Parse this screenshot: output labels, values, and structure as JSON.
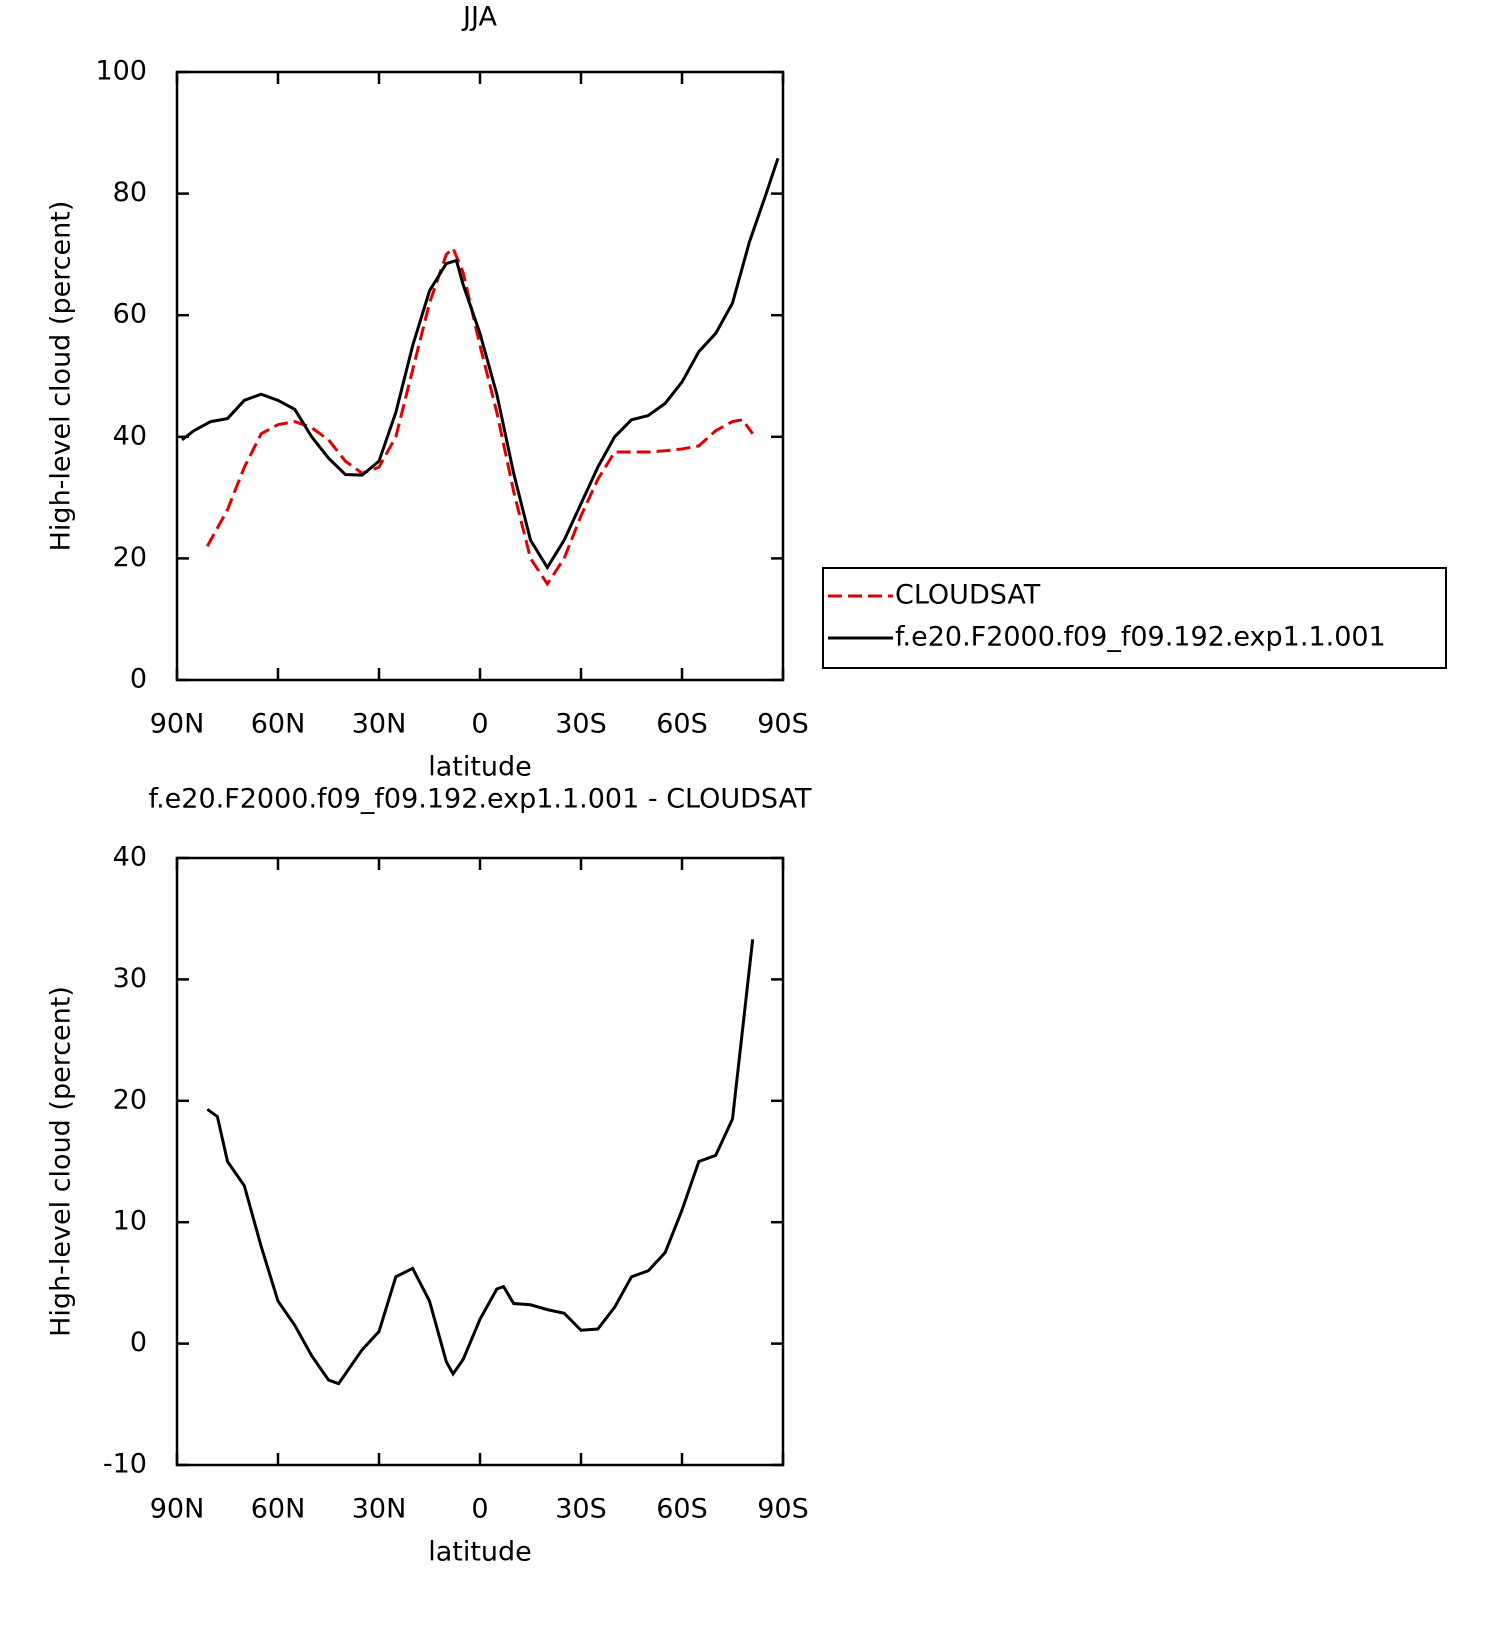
{
  "chart_data": [
    {
      "type": "line",
      "title": "JJA",
      "xlabel": "latitude",
      "ylabel": "High-level cloud (percent)",
      "xlim": [
        90,
        -90
      ],
      "xticks": [
        {
          "value": 90,
          "label": "90N"
        },
        {
          "value": 60,
          "label": "60N"
        },
        {
          "value": 30,
          "label": "30N"
        },
        0,
        {
          "value": -30,
          "label": "30S"
        },
        {
          "value": -60,
          "label": "60S"
        },
        {
          "value": -90,
          "label": "90S"
        }
      ],
      "ylim": [
        0,
        100
      ],
      "yticks": [
        0,
        20,
        40,
        60,
        80,
        100
      ],
      "legend": "right",
      "series": [
        {
          "name": "CLOUDSAT",
          "color": "#e00000",
          "dash": true,
          "x": [
            81,
            75,
            70,
            65,
            60,
            55,
            50,
            45,
            40,
            35,
            30,
            25,
            20,
            15,
            10,
            8,
            5,
            0,
            -5,
            -10,
            -15,
            -20,
            -25,
            -30,
            -35,
            -40,
            -45,
            -50,
            -55,
            -60,
            -65,
            -70,
            -75,
            -78,
            -81
          ],
          "values": [
            22,
            28,
            35,
            40.5,
            42,
            42.5,
            41.5,
            39.5,
            36,
            34,
            35,
            40,
            51,
            62,
            70,
            71,
            67,
            55,
            44,
            31,
            20,
            15.8,
            20,
            27,
            33,
            37.5,
            37.5,
            37.5,
            37.7,
            38,
            38.5,
            41,
            42.5,
            42.8,
            40.5
          ]
        },
        {
          "name": "f.e20.F2000.f09_f09.192.exp1.1.001",
          "color": "#000000",
          "dash": false,
          "x": [
            88.5,
            85,
            80,
            75,
            70,
            65,
            60,
            55,
            50,
            45,
            40,
            35,
            30,
            25,
            20,
            15,
            10,
            7,
            5,
            0,
            -5,
            -10,
            -15,
            -20,
            -25,
            -30,
            -35,
            -40,
            -45,
            -50,
            -55,
            -60,
            -65,
            -70,
            -75,
            -80,
            -85,
            -88.5
          ],
          "values": [
            39.5,
            41,
            42.5,
            43,
            46,
            47,
            46,
            44.5,
            40,
            36.5,
            33.8,
            33.7,
            36,
            44,
            55,
            64,
            68.5,
            69,
            65,
            57,
            47,
            34,
            23,
            18.5,
            23,
            29,
            35,
            40,
            42.8,
            43.5,
            45.5,
            49,
            54,
            57,
            62,
            72,
            80,
            85.8
          ]
        }
      ]
    },
    {
      "type": "line",
      "title": "f.e20.F2000.f09_f09.192.exp1.1.001 - CLOUDSAT",
      "xlabel": "latitude",
      "ylabel": "High-level cloud (percent)",
      "xlim": [
        90,
        -90
      ],
      "xticks": [
        {
          "value": 90,
          "label": "90N"
        },
        {
          "value": 60,
          "label": "60N"
        },
        {
          "value": 30,
          "label": "30N"
        },
        0,
        {
          "value": -30,
          "label": "30S"
        },
        {
          "value": -60,
          "label": "60S"
        },
        {
          "value": -90,
          "label": "90S"
        }
      ],
      "ylim": [
        -10,
        40
      ],
      "yticks": [
        -10,
        0,
        10,
        20,
        30,
        40
      ],
      "series": [
        {
          "color": "#000000",
          "dash": false,
          "x": [
            81,
            78,
            75,
            70,
            65,
            60,
            55,
            50,
            45,
            42,
            40,
            35,
            30,
            25,
            20,
            15,
            10,
            8,
            5,
            0,
            -5,
            -7,
            -10,
            -15,
            -20,
            -25,
            -30,
            -35,
            -40,
            -45,
            -50,
            -55,
            -60,
            -65,
            -70,
            -75,
            -81
          ],
          "values": [
            19.3,
            18.7,
            15,
            13,
            8,
            3.5,
            1.5,
            -1,
            -3,
            -3.3,
            -2.5,
            -0.5,
            1,
            5.5,
            6.2,
            3.5,
            -1.5,
            -2.5,
            -1.3,
            2,
            4.5,
            4.7,
            3.3,
            3.2,
            2.8,
            2.5,
            1.1,
            1.2,
            3,
            5.5,
            6,
            7.5,
            11,
            15,
            15.5,
            18.5,
            33.3
          ]
        }
      ]
    }
  ]
}
